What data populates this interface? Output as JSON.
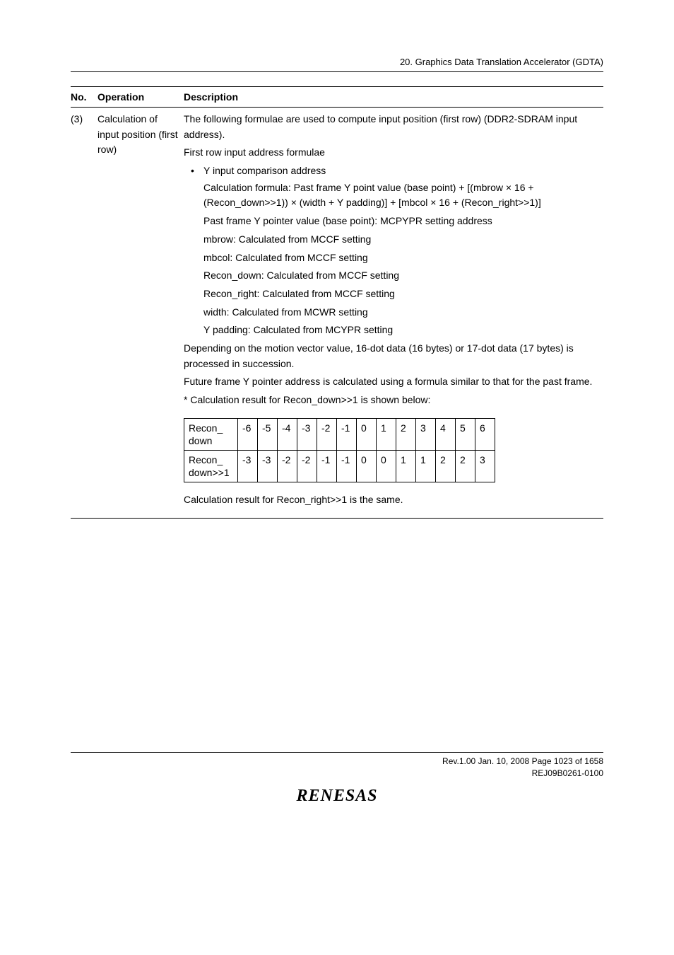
{
  "header": "20.   Graphics Data Translation Accelerator (GDTA)",
  "columns": {
    "no": "No.",
    "op": "Operation",
    "desc": "Description"
  },
  "row": {
    "no": "(3)",
    "operation": "Calculation of input position (first row)",
    "desc": {
      "p1": "The following formulae are used to compute input position (first row) (DDR2-SDRAM input address).",
      "p2": "First row input address formulae",
      "bullet": "Y input comparison address",
      "calc1": "Calculation formula: Past frame Y point value (base point) + [(mbrow × 16 + (Recon_down>>1)) × (width + Y padding)] + [mbcol × 16 + (Recon_right>>1)]",
      "calc2": "Past frame Y pointer value (base point): MCPYPR setting address",
      "calc3": "mbrow: Calculated from MCCF setting",
      "calc4": "mbcol: Calculated from MCCF setting",
      "calc5": "Recon_down: Calculated from MCCF setting",
      "calc6": "Recon_right: Calculated from MCCF setting",
      "calc7": "width: Calculated from MCWR setting",
      "calc8": "Y padding: Calculated from MCYPR setting",
      "p3": "Depending on the motion vector value, 16-dot data (16 bytes) or 17-dot data (17 bytes) is processed in succession.",
      "p4": "Future frame Y pointer address is calculated using a formula similar to that for the past frame.",
      "p5": "* Calculation result for Recon_down>>1 is shown below:",
      "p6": "Calculation result for Recon_right>>1 is the same."
    }
  },
  "recon": {
    "row1_label": "Recon_\ndown",
    "row1": [
      "-6",
      "-5",
      "-4",
      "-3",
      "-2",
      "-1",
      "0",
      "1",
      "2",
      "3",
      "4",
      "5",
      "6"
    ],
    "row2_label": "Recon_\ndown>>1",
    "row2": [
      "-3",
      "-3",
      "-2",
      "-2",
      "-1",
      "-1",
      "0",
      "0",
      "1",
      "1",
      "2",
      "2",
      "3"
    ]
  },
  "footer": {
    "line1": "Rev.1.00  Jan. 10, 2008  Page 1023 of 1658",
    "line2": "REJ09B0261-0100",
    "logo": "RENESAS"
  }
}
